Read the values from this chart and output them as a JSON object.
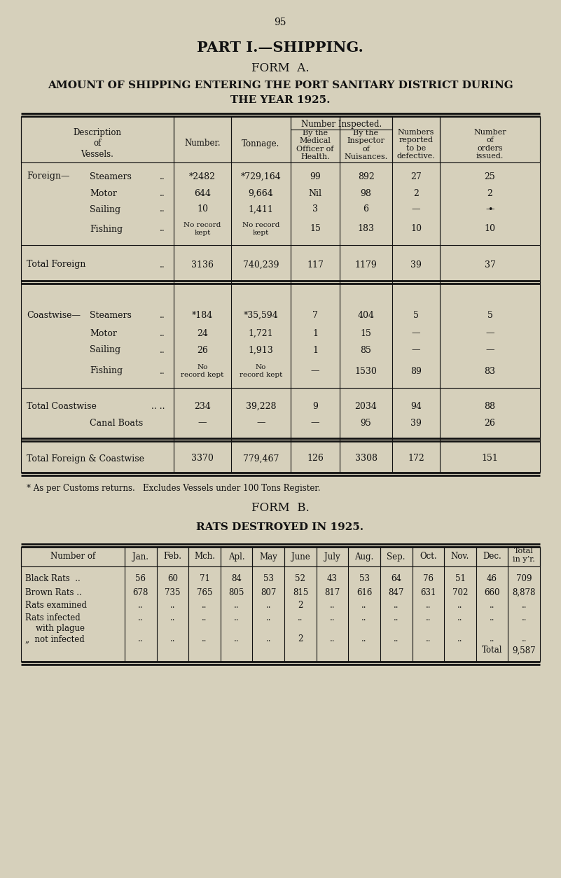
{
  "page_number": "95",
  "title1": "PART I.—SHIPPING.",
  "title2": "FORM  A.",
  "title3": "AMOUNT OF SHIPPING ENTERING THE PORT SANITARY DISTRICT DURING",
  "title4": "THE YEAR 1925.",
  "bg_color": "#d6d0bb",
  "text_color": "#111111",
  "formA": {
    "footnote": "* As per Customs returns.   Excludes Vessels under 100 Tons Register."
  },
  "formB": {
    "title1": "FORM  B.",
    "title2": "RATS DESTROYED IN 1925.",
    "months": [
      "Jan.",
      "Feb.",
      "Mch.",
      "Apl.",
      "May",
      "June",
      "July",
      "Aug.",
      "Sep.",
      "Oct.",
      "Nov.",
      "Dec.",
      "Total\nin y’r."
    ],
    "col_header": "Number of",
    "rows": [
      {
        "label": "Black Rats  ..",
        "vals": [
          "56",
          "60",
          "71",
          "84",
          "53",
          "52",
          "43",
          "53",
          "64",
          "76",
          "51",
          "46",
          "709"
        ]
      },
      {
        "label": "Brown Rats ..",
        "vals": [
          "678",
          "735",
          "765",
          "805",
          "807",
          "815",
          "817",
          "616",
          "847",
          "631",
          "702",
          "660",
          "8,878"
        ]
      },
      {
        "label": "Rats examined",
        "vals": [
          "..",
          "..",
          "..",
          "..",
          "..",
          "2",
          "..",
          "..",
          "..",
          "..",
          "..",
          "..",
          ".."
        ]
      },
      {
        "label": "Rats infected",
        "vals": [
          "..",
          "..",
          "..",
          "..",
          "..",
          "..",
          "..",
          "..",
          "..",
          "..",
          "..",
          "..",
          ".."
        ]
      },
      {
        "label": "    with plague",
        "vals": [
          "",
          "",
          "",
          "",
          "",
          "",
          "",
          "",
          "",
          "",
          "",
          "",
          ""
        ]
      },
      {
        "label": "„  not infected",
        "vals": [
          "..",
          "..",
          "..",
          "..",
          "..",
          "2",
          "..",
          "..",
          "..",
          "..",
          "..",
          "..",
          ".."
        ]
      },
      {
        "label": "",
        "vals": [
          "",
          "",
          "",
          "",
          "",
          "",
          "",
          "",
          "",
          "",
          "",
          "Total",
          "9,587"
        ]
      }
    ]
  }
}
